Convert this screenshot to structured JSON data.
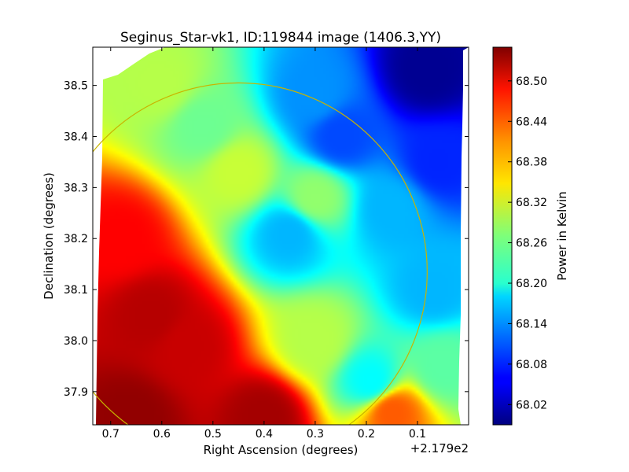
{
  "chart_data": {
    "type": "heatmap",
    "title": "Seginus_Star-vk1, ID:119844 image (1406.3,YY)",
    "xlabel": "Right Ascension (degrees)",
    "ylabel": "Declination (degrees)",
    "x_offset_label": "+2.179e2",
    "x_ticks": [
      {
        "value": 0.7,
        "label": "0.7"
      },
      {
        "value": 0.6,
        "label": "0.6"
      },
      {
        "value": 0.5,
        "label": "0.5"
      },
      {
        "value": 0.4,
        "label": "0.4"
      },
      {
        "value": 0.3,
        "label": "0.3"
      },
      {
        "value": 0.2,
        "label": "0.2"
      },
      {
        "value": 0.1,
        "label": "0.1"
      }
    ],
    "y_ticks": [
      {
        "value": 37.9,
        "label": "37.9"
      },
      {
        "value": 38.0,
        "label": "38.0"
      },
      {
        "value": 38.1,
        "label": "38.1"
      },
      {
        "value": 38.2,
        "label": "38.2"
      },
      {
        "value": 38.3,
        "label": "38.3"
      },
      {
        "value": 38.4,
        "label": "38.4"
      },
      {
        "value": 38.5,
        "label": "38.5"
      }
    ],
    "xlim": [
      0.735,
      0.0
    ],
    "ylim": [
      37.835,
      38.575
    ],
    "colorbar": {
      "label": "Power in Kelvin",
      "range": [
        67.99,
        68.55
      ],
      "ticks": [
        {
          "value": 68.02,
          "label": "68.02"
        },
        {
          "value": 68.08,
          "label": "68.08"
        },
        {
          "value": 68.14,
          "label": "68.14"
        },
        {
          "value": 68.2,
          "label": "68.20"
        },
        {
          "value": 68.26,
          "label": "68.26"
        },
        {
          "value": 68.32,
          "label": "68.32"
        },
        {
          "value": 68.38,
          "label": "68.38"
        },
        {
          "value": 68.44,
          "label": "68.44"
        },
        {
          "value": 68.5,
          "label": "68.50"
        }
      ],
      "colormap": "jet"
    },
    "circle": {
      "center_x": 0.45,
      "center_y": 38.135,
      "radius_deg": 0.37,
      "color": "#c8b400"
    },
    "hotspots": [
      {
        "x": 0.62,
        "y": 38.05,
        "value": 68.52
      },
      {
        "x": 0.55,
        "y": 37.99,
        "value": 68.51
      },
      {
        "x": 0.66,
        "y": 37.85,
        "value": 68.54
      },
      {
        "x": 0.4,
        "y": 37.85,
        "value": 68.53
      },
      {
        "x": 0.68,
        "y": 38.2,
        "value": 68.48
      },
      {
        "x": 0.15,
        "y": 37.86,
        "value": 68.43
      },
      {
        "x": 0.52,
        "y": 38.42,
        "value": 68.26
      },
      {
        "x": 0.3,
        "y": 38.28,
        "value": 68.28
      },
      {
        "x": 0.35,
        "y": 38.21,
        "value": 68.16
      },
      {
        "x": 0.19,
        "y": 37.92,
        "value": 68.2
      },
      {
        "x": 0.3,
        "y": 38.48,
        "value": 68.14
      },
      {
        "x": 0.25,
        "y": 38.4,
        "value": 68.1
      },
      {
        "x": 0.08,
        "y": 38.53,
        "value": 68.0
      },
      {
        "x": 0.15,
        "y": 38.26,
        "value": 68.16
      },
      {
        "x": 0.06,
        "y": 38.35,
        "value": 68.08
      },
      {
        "x": 0.07,
        "y": 38.1,
        "value": 68.16
      },
      {
        "x": 0.45,
        "y": 38.33,
        "value": 68.31
      },
      {
        "x": 0.6,
        "y": 38.5,
        "value": 68.3
      },
      {
        "x": 0.05,
        "y": 37.95,
        "value": 68.25
      },
      {
        "x": 0.3,
        "y": 38.0,
        "value": 68.3
      }
    ]
  }
}
